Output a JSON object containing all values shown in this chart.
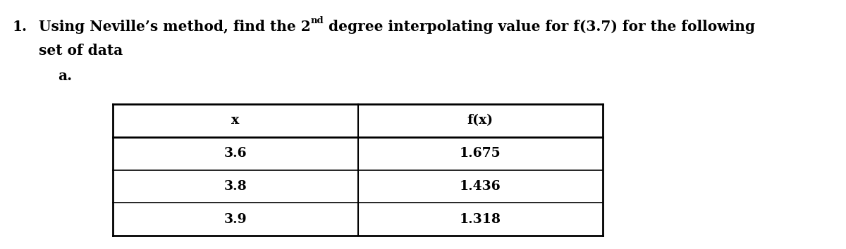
{
  "number": "1.",
  "title_part1": "Using Neville’s method, find the 2",
  "title_sup": "nd",
  "title_part2": " degree interpolating value for f(3.7) for the following",
  "title_line2": "set of data",
  "sub_label": "a.",
  "col_headers": [
    "x",
    "f(x)"
  ],
  "table_data": [
    [
      "3.6",
      "1.675"
    ],
    [
      "3.8",
      "1.436"
    ],
    [
      "3.9",
      "1.318"
    ]
  ],
  "background_color": "#ffffff",
  "text_color": "#000000",
  "font_size_title": 14.5,
  "font_size_table": 13.5,
  "font_size_sup": 9.5,
  "font_family": "DejaVu Serif",
  "font_weight": "bold"
}
